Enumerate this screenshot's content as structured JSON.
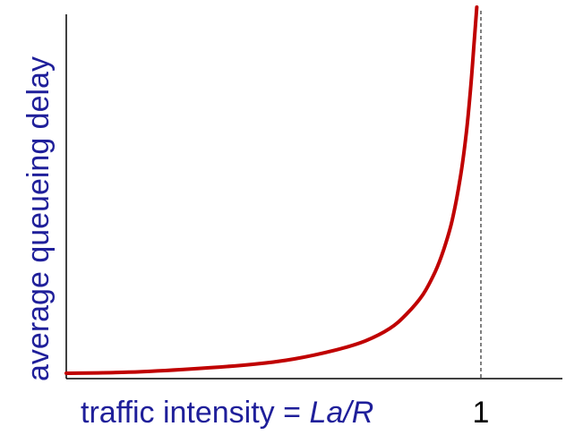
{
  "chart_data": {
    "type": "line",
    "title": "",
    "xlabel_prefix": "traffic intensity = ",
    "xlabel_emph": "La/R",
    "ylabel": "average  queueing delay",
    "xlim": [
      0,
      1.17
    ],
    "ylim": [
      0,
      1
    ],
    "x_ticks": [
      {
        "value": 1,
        "label": "1"
      }
    ],
    "reference_line": {
      "x": 1,
      "style": "dashed"
    },
    "grid": false,
    "legend": "none",
    "series": [
      {
        "color": "#c00000",
        "x": [
          0.0,
          0.15,
          0.3,
          0.45,
          0.55,
          0.65,
          0.72,
          0.78,
          0.82,
          0.86,
          0.89,
          0.91,
          0.93,
          0.95,
          0.965,
          0.975,
          0.983,
          0.99
        ],
        "y": [
          0.005,
          0.008,
          0.017,
          0.03,
          0.045,
          0.07,
          0.095,
          0.13,
          0.17,
          0.225,
          0.29,
          0.35,
          0.43,
          0.55,
          0.68,
          0.8,
          0.92,
          1.03
        ]
      }
    ],
    "colors": {
      "axis": "#000000",
      "curve": "#c00000",
      "label": "#1f1f9a"
    }
  }
}
